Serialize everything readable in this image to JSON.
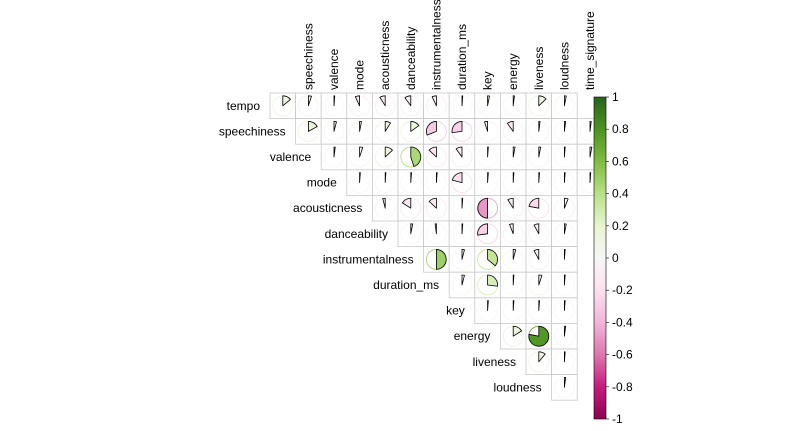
{
  "chart_data": {
    "type": "heatmap",
    "variables": [
      "speechiness",
      "valence",
      "mode",
      "acousticness",
      "danceability",
      "instrumentalness",
      "duration_ms",
      "key",
      "energy",
      "liveness",
      "loudness",
      "time_signature"
    ],
    "row_labels": [
      "tempo",
      "speechiness",
      "valence",
      "mode",
      "acousticness",
      "danceability",
      "instrumentalness",
      "duration_ms",
      "key",
      "energy",
      "liveness",
      "loudness"
    ],
    "values": [
      [
        0.14,
        0.05,
        0.0,
        -0.07,
        -0.09,
        -0.1,
        -0.07,
        0.0,
        0.03,
        0.02,
        0.13,
        0.03
      ],
      [
        0.17,
        0.04,
        0.03,
        0.09,
        0.15,
        -0.31,
        -0.27,
        -0.05,
        -0.1,
        0.02,
        0.02,
        0.02
      ],
      [
        0.02,
        0.05,
        0.13,
        0.45,
        -0.13,
        -0.1,
        0.01,
        0.03,
        0.03,
        0.01,
        0.03
      ],
      [
        0.0,
        0.0,
        0.0,
        0.0,
        -0.21,
        0.0,
        0.0,
        0.0,
        0.0,
        0.0
      ],
      [
        -0.04,
        -0.16,
        -0.13,
        0.0,
        -0.5,
        -0.09,
        -0.22,
        0.06
      ],
      [
        0.03,
        -0.02,
        0.0,
        -0.27,
        -0.06,
        -0.08,
        0.03
      ],
      [
        0.5,
        0.04,
        0.36,
        0.04,
        -0.08,
        0.01
      ],
      [
        0.04,
        0.27,
        0.01,
        0.05,
        0.0
      ],
      [
        0.0,
        0.0,
        0.0,
        0.0
      ],
      [
        0.16,
        0.78,
        0.02
      ],
      [
        0.11,
        0.0
      ],
      [
        0.02
      ]
    ],
    "legend_ticks": [
      1,
      0.8,
      0.6,
      0.4,
      0.2,
      0,
      -0.2,
      -0.4,
      -0.6,
      -0.8,
      -1
    ],
    "color_scale": [
      "#8e0152",
      "#c51b7d",
      "#de77ae",
      "#f1b6da",
      "#fde0ef",
      "#f7f7f7",
      "#e6f5d0",
      "#b8e186",
      "#7fbc41",
      "#4d9221",
      "#276419"
    ],
    "clim": [
      -1,
      1
    ],
    "method": "pie",
    "type_layout": "upper",
    "grid": true
  }
}
